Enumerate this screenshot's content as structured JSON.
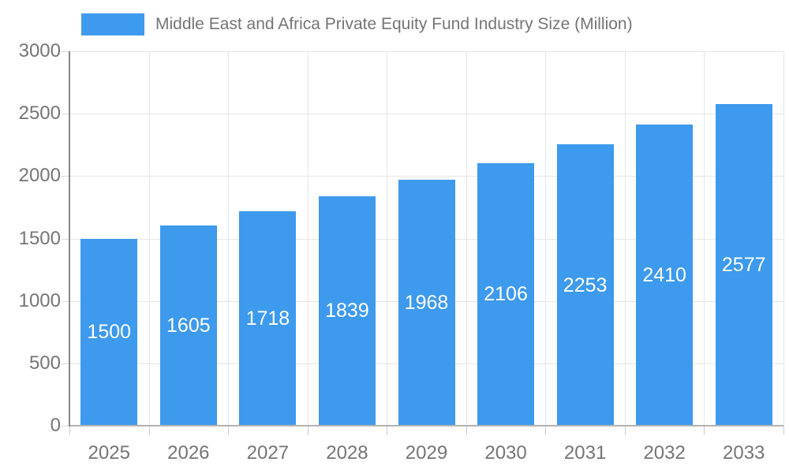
{
  "chart_data": {
    "type": "bar",
    "title": "Middle East and Africa Private Equity Fund Industry Size (Million)",
    "categories": [
      "2025",
      "2026",
      "2027",
      "2028",
      "2029",
      "2030",
      "2031",
      "2032",
      "2033"
    ],
    "values": [
      1500,
      1605,
      1718,
      1839,
      1968,
      2106,
      2253,
      2410,
      2577
    ],
    "series_name": "Middle East and Africa Private Equity Fund Industry Size (Million)",
    "xlabel": "",
    "ylabel": "",
    "ylim": [
      0,
      3000
    ],
    "y_ticks": [
      0,
      500,
      1000,
      1500,
      2000,
      2500,
      3000
    ],
    "grid": true,
    "legend_position": "top",
    "bar_label_position": "inside-center",
    "colors": {
      "bar": "#3d9aed",
      "grid": "#e6e6e6",
      "axis_line": "#888888",
      "baseline": "#b3b3b3",
      "text": "#757575",
      "bar_label": "#ffffff",
      "background": "#ffffff"
    }
  }
}
